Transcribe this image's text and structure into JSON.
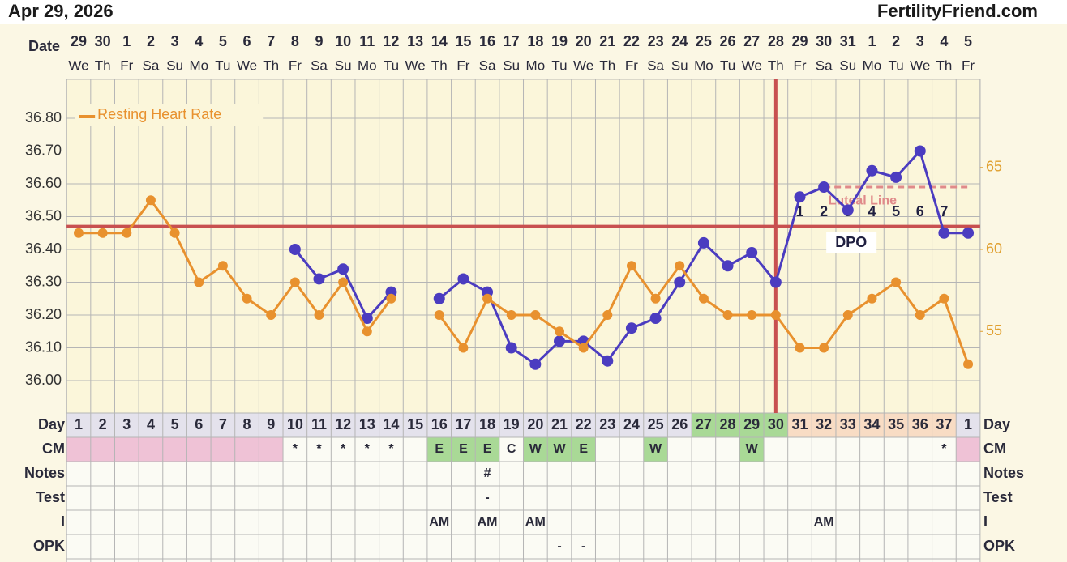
{
  "header": {
    "date": "Apr 29, 2026",
    "brand": "FertilityFriend.com"
  },
  "chart_data": {
    "type": "line",
    "date_label": "Date",
    "categories": [
      "29",
      "30",
      "1",
      "2",
      "3",
      "4",
      "5",
      "6",
      "7",
      "8",
      "9",
      "10",
      "11",
      "12",
      "13",
      "14",
      "15",
      "16",
      "17",
      "18",
      "19",
      "20",
      "21",
      "22",
      "23",
      "24",
      "25",
      "26",
      "27",
      "28",
      "29",
      "30",
      "31",
      "1",
      "2",
      "3",
      "4",
      "5"
    ],
    "weekdays": [
      "We",
      "Th",
      "Fr",
      "Sa",
      "Su",
      "Mo",
      "Tu",
      "We",
      "Th",
      "Fr",
      "Sa",
      "Su",
      "Mo",
      "Tu",
      "We",
      "Th",
      "Fr",
      "Sa",
      "Su",
      "Mo",
      "Tu",
      "We",
      "Th",
      "Fr",
      "Sa",
      "Su",
      "Mo",
      "Tu",
      "We",
      "Th",
      "Fr",
      "Sa",
      "Su",
      "Mo",
      "Tu",
      "We",
      "Th",
      "Fr"
    ],
    "series": [
      {
        "color": "#4b3cc0",
        "values": [
          null,
          null,
          null,
          null,
          null,
          null,
          null,
          null,
          null,
          36.4,
          36.31,
          36.34,
          36.19,
          36.27,
          null,
          36.25,
          36.31,
          36.27,
          36.1,
          36.05,
          36.12,
          36.12,
          36.06,
          36.16,
          36.19,
          36.3,
          36.42,
          36.35,
          36.39,
          36.3,
          36.56,
          36.59,
          36.52,
          36.64,
          36.62,
          36.7,
          36.45,
          36.45
        ]
      },
      {
        "name": "Resting Heart Rate",
        "color": "#e8912e",
        "axis": "y2",
        "values": [
          61,
          61,
          61,
          63,
          61,
          58,
          59,
          57,
          56,
          58,
          56,
          58,
          55,
          57,
          null,
          56,
          54,
          57,
          56,
          56,
          55,
          54,
          56,
          59,
          57,
          59,
          57,
          56,
          56,
          56,
          54,
          54,
          56,
          57,
          58,
          56,
          57,
          53
        ]
      }
    ],
    "ylim": [
      35.9,
      36.9
    ],
    "yticks": [
      {
        "value": 36.0,
        "label": "36.00"
      },
      {
        "value": 36.1,
        "label": "36.10"
      },
      {
        "value": 36.2,
        "label": "36.20"
      },
      {
        "value": 36.3,
        "label": "36.30"
      },
      {
        "value": 36.4,
        "label": "36.40"
      },
      {
        "value": 36.5,
        "label": "36.50"
      },
      {
        "value": 36.6,
        "label": "36.60"
      },
      {
        "value": 36.7,
        "label": "36.70"
      },
      {
        "value": 36.8,
        "label": "36.80"
      }
    ],
    "y2lim": [
      50,
      70
    ],
    "y2ticks": [
      55,
      60,
      65
    ],
    "y2_color": "#e0a030",
    "grid": true,
    "legend": "top-left",
    "coverline": {
      "value": 36.47,
      "color": "#c85050"
    },
    "ovulation_day": 30,
    "luteal_line": {
      "label": "Luteal Line",
      "value": 36.59,
      "from_day": 32,
      "to_day": 37,
      "color": "#e08a8a"
    },
    "dpo": {
      "label": "DPO",
      "from_day": 31,
      "values": [
        1,
        2,
        3,
        4,
        5,
        6,
        7
      ]
    },
    "rows": [
      {
        "label": "Day",
        "values": [
          1,
          2,
          3,
          4,
          5,
          6,
          7,
          8,
          9,
          10,
          11,
          12,
          13,
          14,
          15,
          16,
          17,
          18,
          19,
          20,
          21,
          22,
          23,
          24,
          25,
          26,
          27,
          28,
          29,
          30,
          31,
          32,
          33,
          34,
          35,
          36,
          37,
          1
        ],
        "colors": [
          "#e4e2ec",
          "#e4e2ec",
          "#e4e2ec",
          "#e4e2ec",
          "#e4e2ec",
          "#e4e2ec",
          "#e4e2ec",
          "#e4e2ec",
          "#e4e2ec",
          "#e4e2ec",
          "#e4e2ec",
          "#e4e2ec",
          "#e4e2ec",
          "#e4e2ec",
          "#e4e2ec",
          "#e4e2ec",
          "#e4e2ec",
          "#e4e2ec",
          "#e4e2ec",
          "#e4e2ec",
          "#e4e2ec",
          "#e4e2ec",
          "#e4e2ec",
          "#e4e2ec",
          "#e4e2ec",
          "#e4e2ec",
          "#a9d996",
          "#a9d996",
          "#a9d996",
          "#a9d996",
          "#f8dcc4",
          "#f8dcc4",
          "#f8dcc4",
          "#f8dcc4",
          "#f8dcc4",
          "#f8dcc4",
          "#f8dcc4",
          "#e4e2ec"
        ]
      },
      {
        "label": "CM",
        "values": [
          null,
          null,
          null,
          null,
          null,
          null,
          null,
          null,
          null,
          "*",
          "*",
          "*",
          "*",
          "*",
          null,
          "E",
          "E",
          "E",
          "C",
          "W",
          "W",
          "E",
          null,
          null,
          "W",
          null,
          null,
          null,
          "W",
          null,
          null,
          null,
          null,
          null,
          null,
          null,
          "*",
          null
        ],
        "colors": [
          "#efc2d6",
          "#efc2d6",
          "#efc2d6",
          "#efc2d6",
          "#efc2d6",
          "#efc2d6",
          "#efc2d6",
          "#efc2d6",
          "#efc2d6",
          null,
          null,
          null,
          null,
          null,
          null,
          "#a9d996",
          "#a9d996",
          "#a9d996",
          null,
          "#a9d996",
          "#a9d996",
          "#a9d996",
          null,
          null,
          "#a9d996",
          null,
          null,
          null,
          "#a9d996",
          null,
          null,
          null,
          null,
          null,
          null,
          null,
          null,
          "#efc2d6"
        ]
      },
      {
        "label": "Notes",
        "values": [
          null,
          null,
          null,
          null,
          null,
          null,
          null,
          null,
          null,
          null,
          null,
          null,
          null,
          null,
          null,
          null,
          null,
          "#",
          null,
          null,
          null,
          null,
          null,
          null,
          null,
          null,
          null,
          null,
          null,
          null,
          null,
          null,
          null,
          null,
          null,
          null,
          null,
          null
        ]
      },
      {
        "label": "Test",
        "values": [
          null,
          null,
          null,
          null,
          null,
          null,
          null,
          null,
          null,
          null,
          null,
          null,
          null,
          null,
          null,
          null,
          null,
          "-",
          null,
          null,
          null,
          null,
          null,
          null,
          null,
          null,
          null,
          null,
          null,
          null,
          null,
          null,
          null,
          null,
          null,
          null,
          null,
          null
        ]
      },
      {
        "label": "I",
        "values": [
          null,
          null,
          null,
          null,
          null,
          null,
          null,
          null,
          null,
          null,
          null,
          null,
          null,
          null,
          null,
          "AM",
          null,
          "AM",
          null,
          "AM",
          null,
          null,
          null,
          null,
          null,
          null,
          null,
          null,
          null,
          null,
          null,
          "AM",
          null,
          null,
          null,
          null,
          null,
          null
        ]
      },
      {
        "label": "OPK",
        "values": [
          null,
          null,
          null,
          null,
          null,
          null,
          null,
          null,
          null,
          null,
          null,
          null,
          null,
          null,
          null,
          null,
          null,
          null,
          null,
          null,
          "-",
          "-",
          null,
          null,
          null,
          null,
          null,
          null,
          null,
          null,
          null,
          null,
          null,
          null,
          null,
          null,
          null,
          null
        ]
      }
    ]
  }
}
